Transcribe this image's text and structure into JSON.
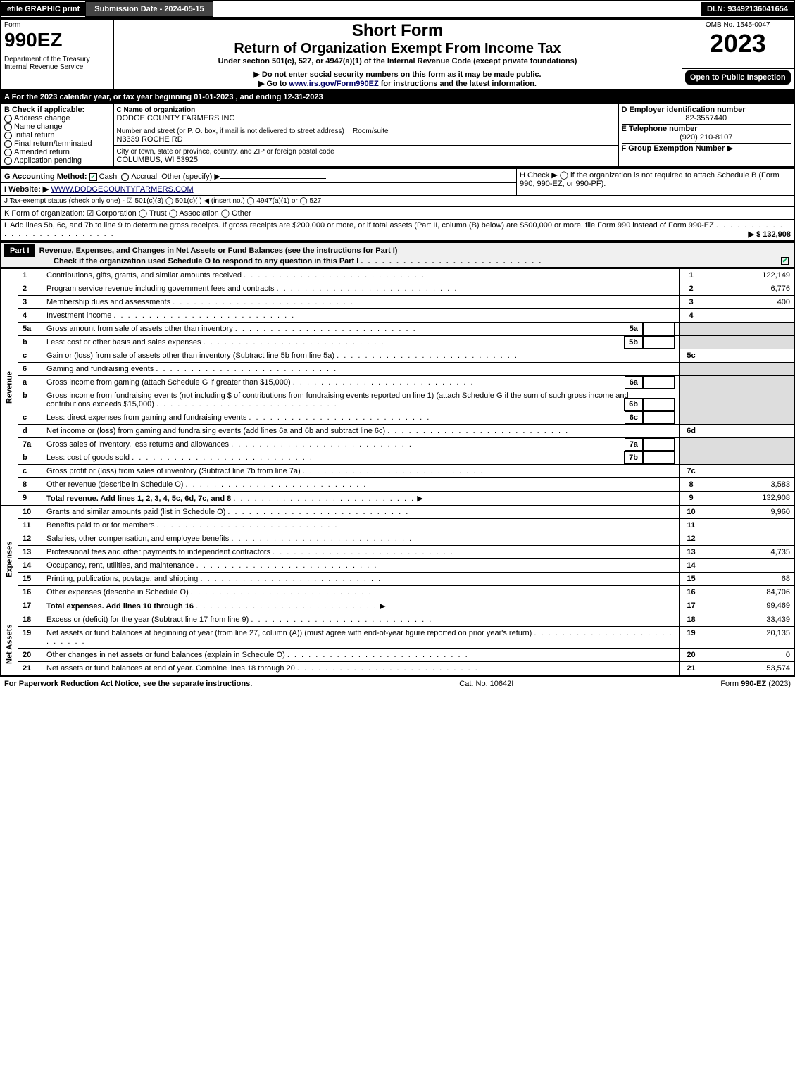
{
  "topbar": {
    "efile": "efile GRAPHIC print",
    "submission": "Submission Date - 2024-05-15",
    "dln": "DLN: 93492136041654"
  },
  "header": {
    "form_word": "Form",
    "form_num": "990EZ",
    "dept": "Department of the Treasury",
    "irs": "Internal Revenue Service",
    "title1": "Short Form",
    "title2": "Return of Organization Exempt From Income Tax",
    "sub1": "Under section 501(c), 527, or 4947(a)(1) of the Internal Revenue Code (except private foundations)",
    "sub2": "▶ Do not enter social security numbers on this form as it may be made public.",
    "sub3_prefix": "▶ Go to ",
    "sub3_link": "www.irs.gov/Form990EZ",
    "sub3_suffix": " for instructions and the latest information.",
    "omb": "OMB No. 1545-0047",
    "year": "2023",
    "open": "Open to Public Inspection"
  },
  "sectionA": "A  For the 2023 calendar year, or tax year beginning 01-01-2023 , and ending 12-31-2023",
  "boxB": {
    "title": "B  Check if applicable:",
    "opts": [
      "Address change",
      "Name change",
      "Initial return",
      "Final return/terminated",
      "Amended return",
      "Application pending"
    ]
  },
  "boxC": {
    "label": "C Name of organization",
    "name": "DODGE COUNTY FARMERS INC",
    "street_label": "Number and street (or P. O. box, if mail is not delivered to street address)",
    "room_label": "Room/suite",
    "street": "N3339 ROCHE RD",
    "city_label": "City or town, state or province, country, and ZIP or foreign postal code",
    "city": "COLUMBUS, WI  53925"
  },
  "boxD": {
    "label": "D Employer identification number",
    "value": "82-3557440"
  },
  "boxE": {
    "label": "E Telephone number",
    "value": "(920) 210-8107"
  },
  "boxF": {
    "label": "F Group Exemption Number   ▶"
  },
  "lineG": {
    "label": "G Accounting Method:",
    "cash": "Cash",
    "accrual": "Accrual",
    "other": "Other (specify) ▶"
  },
  "lineH": "H   Check ▶  ◯  if the organization is not required to attach Schedule B (Form 990, 990-EZ, or 990-PF).",
  "lineI": {
    "label": "I Website: ▶",
    "value": "WWW.DODGECOUNTYFARMERS.COM"
  },
  "lineJ": "J Tax-exempt status (check only one) -  ☑ 501(c)(3)  ◯ 501(c)(  ) ◀ (insert no.)  ◯ 4947(a)(1) or  ◯ 527",
  "lineK": "K Form of organization:   ☑ Corporation   ◯ Trust   ◯ Association   ◯ Other",
  "lineL": {
    "text": "L Add lines 5b, 6c, and 7b to line 9 to determine gross receipts. If gross receipts are $200,000 or more, or if total assets (Part II, column (B) below) are $500,000 or more, file Form 990 instead of Form 990-EZ",
    "amount": "▶ $ 132,908"
  },
  "part1": {
    "label": "Part I",
    "title": "Revenue, Expenses, and Changes in Net Assets or Fund Balances (see the instructions for Part I)",
    "check_line": "Check if the organization used Schedule O to respond to any question in this Part I"
  },
  "sections": {
    "revenue": "Revenue",
    "expenses": "Expenses",
    "netassets": "Net Assets"
  },
  "lines": [
    {
      "n": "1",
      "t": "Contributions, gifts, grants, and similar amounts received",
      "c": "1",
      "a": "122,149"
    },
    {
      "n": "2",
      "t": "Program service revenue including government fees and contracts",
      "c": "2",
      "a": "6,776"
    },
    {
      "n": "3",
      "t": "Membership dues and assessments",
      "c": "3",
      "a": "400"
    },
    {
      "n": "4",
      "t": "Investment income",
      "c": "4",
      "a": ""
    },
    {
      "n": "5a",
      "t": "Gross amount from sale of assets other than inventory",
      "mid": "5a",
      "shade": true
    },
    {
      "n": "b",
      "t": "Less: cost or other basis and sales expenses",
      "mid": "5b",
      "shade": true
    },
    {
      "n": "c",
      "t": "Gain or (loss) from sale of assets other than inventory (Subtract line 5b from line 5a)",
      "c": "5c",
      "a": ""
    },
    {
      "n": "6",
      "t": "Gaming and fundraising events",
      "shade": true,
      "noright": true
    },
    {
      "n": "a",
      "t": "Gross income from gaming (attach Schedule G if greater than $15,000)",
      "mid": "6a",
      "shade": true
    },
    {
      "n": "b",
      "t": "Gross income from fundraising events (not including $                of contributions from fundraising events reported on line 1) (attach Schedule G if the sum of such gross income and contributions exceeds $15,000)",
      "mid": "6b",
      "shade": true
    },
    {
      "n": "c",
      "t": "Less: direct expenses from gaming and fundraising events",
      "mid": "6c",
      "shade": true
    },
    {
      "n": "d",
      "t": "Net income or (loss) from gaming and fundraising events (add lines 6a and 6b and subtract line 6c)",
      "c": "6d",
      "a": ""
    },
    {
      "n": "7a",
      "t": "Gross sales of inventory, less returns and allowances",
      "mid": "7a",
      "shade": true
    },
    {
      "n": "b",
      "t": "Less: cost of goods sold",
      "mid": "7b",
      "shade": true
    },
    {
      "n": "c",
      "t": "Gross profit or (loss) from sales of inventory (Subtract line 7b from line 7a)",
      "c": "7c",
      "a": ""
    },
    {
      "n": "8",
      "t": "Other revenue (describe in Schedule O)",
      "c": "8",
      "a": "3,583"
    },
    {
      "n": "9",
      "t": "Total revenue. Add lines 1, 2, 3, 4, 5c, 6d, 7c, and 8",
      "c": "9",
      "a": "132,908",
      "bold": true,
      "arrow": true
    },
    {
      "n": "10",
      "t": "Grants and similar amounts paid (list in Schedule O)",
      "c": "10",
      "a": "9,960"
    },
    {
      "n": "11",
      "t": "Benefits paid to or for members",
      "c": "11",
      "a": ""
    },
    {
      "n": "12",
      "t": "Salaries, other compensation, and employee benefits",
      "c": "12",
      "a": ""
    },
    {
      "n": "13",
      "t": "Professional fees and other payments to independent contractors",
      "c": "13",
      "a": "4,735"
    },
    {
      "n": "14",
      "t": "Occupancy, rent, utilities, and maintenance",
      "c": "14",
      "a": ""
    },
    {
      "n": "15",
      "t": "Printing, publications, postage, and shipping",
      "c": "15",
      "a": "68"
    },
    {
      "n": "16",
      "t": "Other expenses (describe in Schedule O)",
      "c": "16",
      "a": "84,706"
    },
    {
      "n": "17",
      "t": "Total expenses. Add lines 10 through 16",
      "c": "17",
      "a": "99,469",
      "bold": true,
      "arrow": true
    },
    {
      "n": "18",
      "t": "Excess or (deficit) for the year (Subtract line 17 from line 9)",
      "c": "18",
      "a": "33,439"
    },
    {
      "n": "19",
      "t": "Net assets or fund balances at beginning of year (from line 27, column (A)) (must agree with end-of-year figure reported on prior year's return)",
      "c": "19",
      "a": "20,135"
    },
    {
      "n": "20",
      "t": "Other changes in net assets or fund balances (explain in Schedule O)",
      "c": "20",
      "a": "0"
    },
    {
      "n": "21",
      "t": "Net assets or fund balances at end of year. Combine lines 18 through 20",
      "c": "21",
      "a": "53,574"
    }
  ],
  "footer": {
    "left": "For Paperwork Reduction Act Notice, see the separate instructions.",
    "mid": "Cat. No. 10642I",
    "right": "Form 990-EZ (2023)"
  },
  "colors": {
    "black": "#000000",
    "shade": "#dddddd",
    "check": "#0a8f3c"
  }
}
